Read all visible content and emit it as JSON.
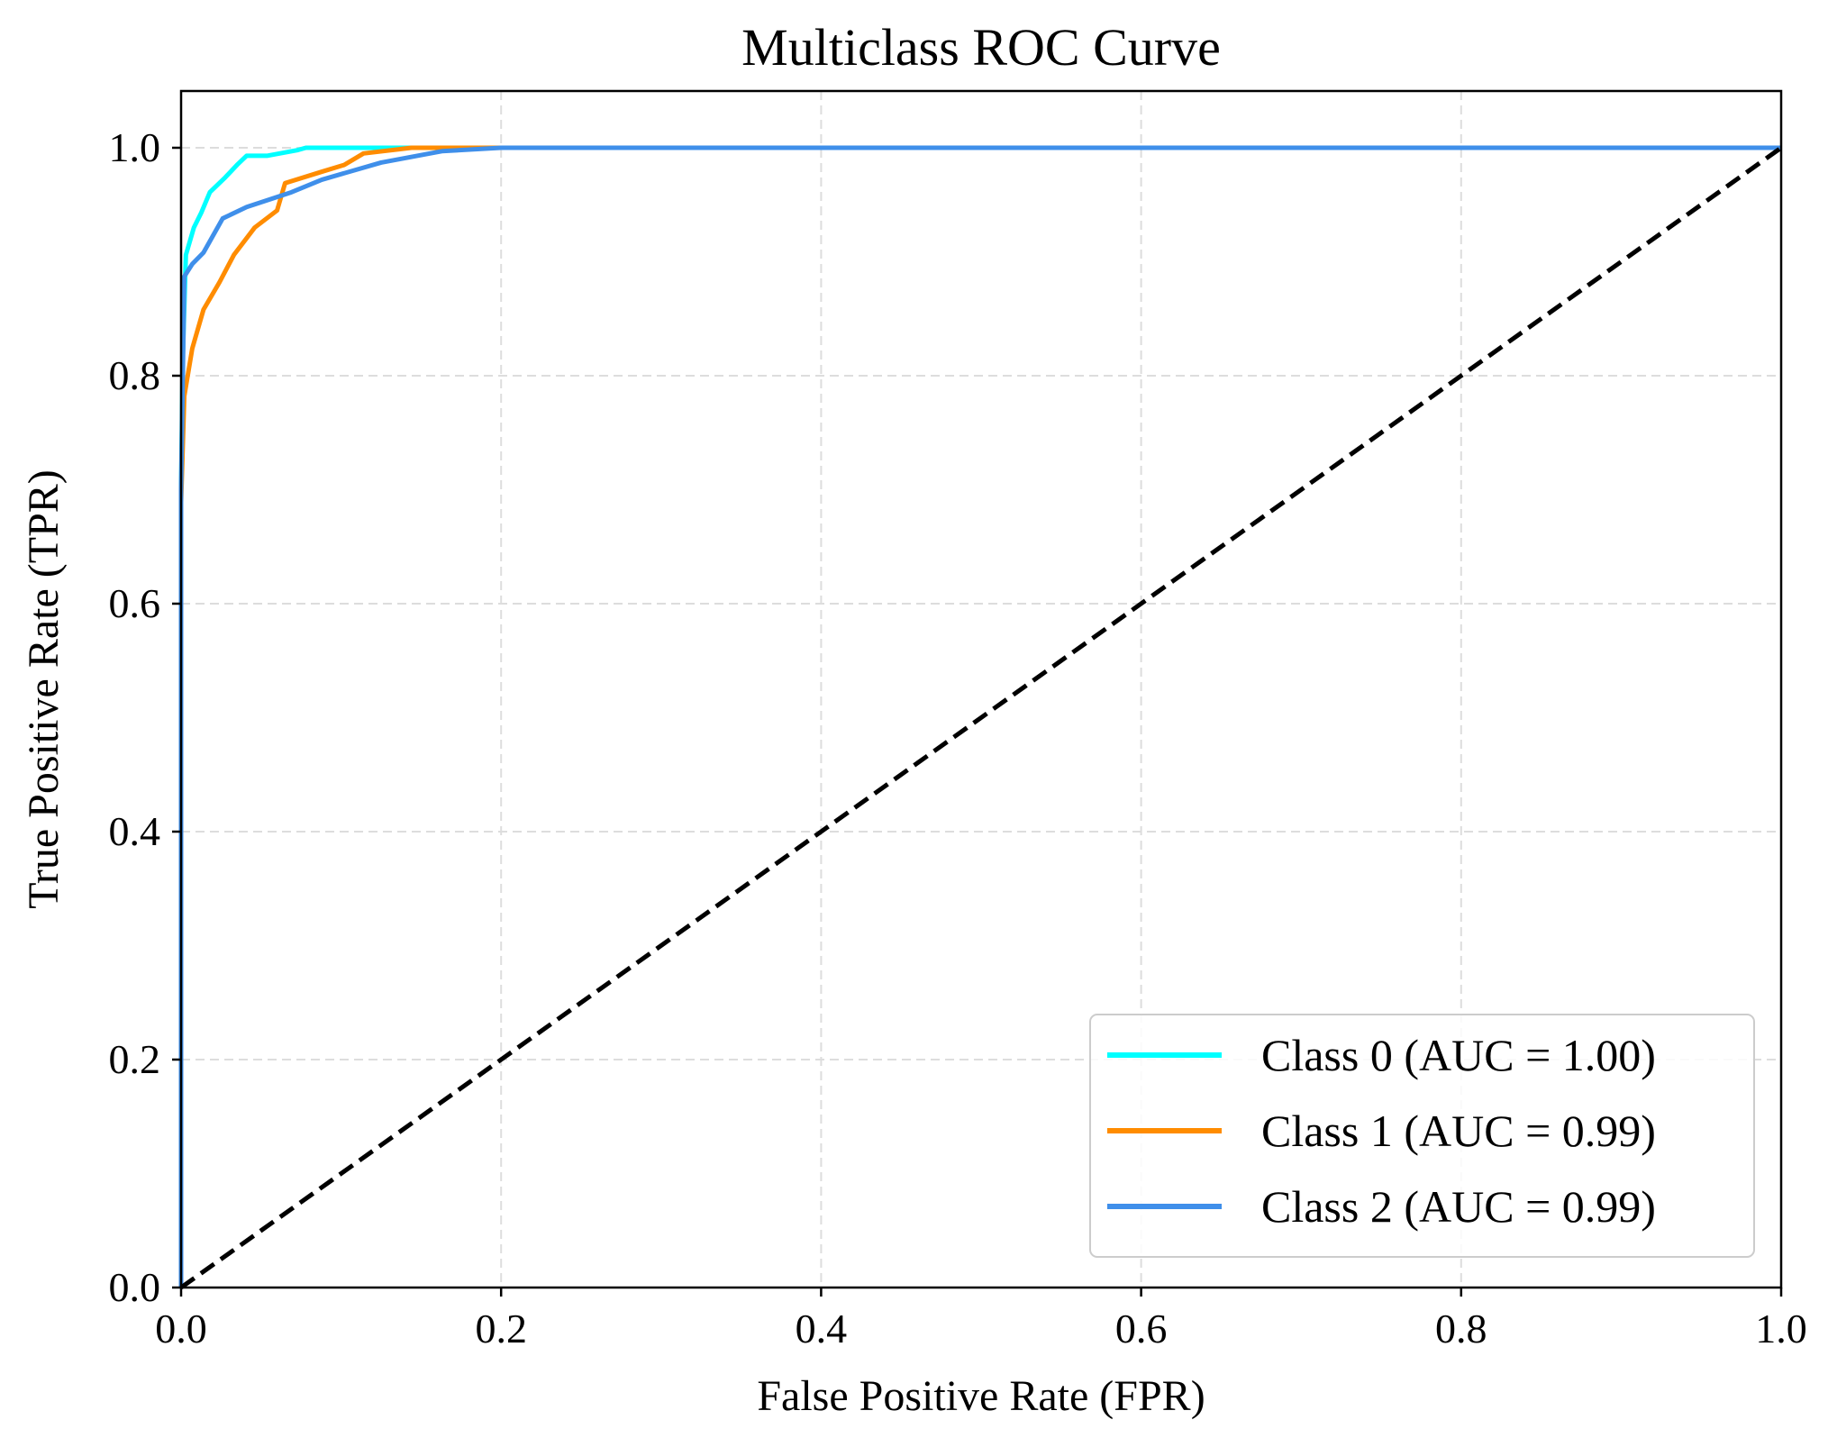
{
  "chart_data": {
    "type": "line",
    "title": "Multiclass ROC Curve",
    "xlabel": "False Positive Rate (FPR)",
    "ylabel": "True Positive Rate (TPR)",
    "xlim": [
      0.0,
      1.0
    ],
    "ylim": [
      0.0,
      1.05
    ],
    "xticks": [
      "0.0",
      "0.2",
      "0.4",
      "0.6",
      "0.8",
      "1.0"
    ],
    "yticks": [
      "0.0",
      "0.2",
      "0.4",
      "0.6",
      "0.8",
      "1.0"
    ],
    "grid": true,
    "legend_position": "bottom-right",
    "series": [
      {
        "name": "Class 0 (AUC = 1.00)",
        "color": "#00FFFF",
        "x": [
          0,
          0,
          0.001,
          0.003,
          0.008,
          0.0126,
          0.018,
          0.0276,
          0.035,
          0.041,
          0.054,
          0.073,
          0.078,
          1.0
        ],
        "y": [
          0,
          0.7,
          0.813,
          0.906,
          0.93,
          0.943,
          0.961,
          0.974,
          0.985,
          0.993,
          0.993,
          0.998,
          1.0,
          1.0
        ]
      },
      {
        "name": "Class 1 (AUC = 0.99)",
        "color": "#FF8C00",
        "x": [
          0,
          0,
          0.002,
          0.007,
          0.014,
          0.024,
          0.033,
          0.046,
          0.06,
          0.065,
          0.088,
          0.102,
          0.114,
          0.144,
          1.0
        ],
        "y": [
          0,
          0.689,
          0.782,
          0.824,
          0.858,
          0.882,
          0.906,
          0.93,
          0.945,
          0.969,
          0.979,
          0.985,
          0.995,
          1.0,
          1.0
        ]
      },
      {
        "name": "Class 2 (AUC = 0.99)",
        "color": "#3F8FEA",
        "x": [
          0,
          0,
          0.002,
          0.007,
          0.014,
          0.026,
          0.041,
          0.069,
          0.088,
          0.125,
          0.163,
          0.2,
          1.0
        ],
        "y": [
          0,
          0.7,
          0.887,
          0.898,
          0.908,
          0.938,
          0.948,
          0.961,
          0.972,
          0.987,
          0.997,
          1.0,
          1.0
        ]
      },
      {
        "color": "#000000",
        "style": "dashed",
        "x": [
          0,
          1
        ],
        "y": [
          0,
          1
        ]
      }
    ]
  }
}
